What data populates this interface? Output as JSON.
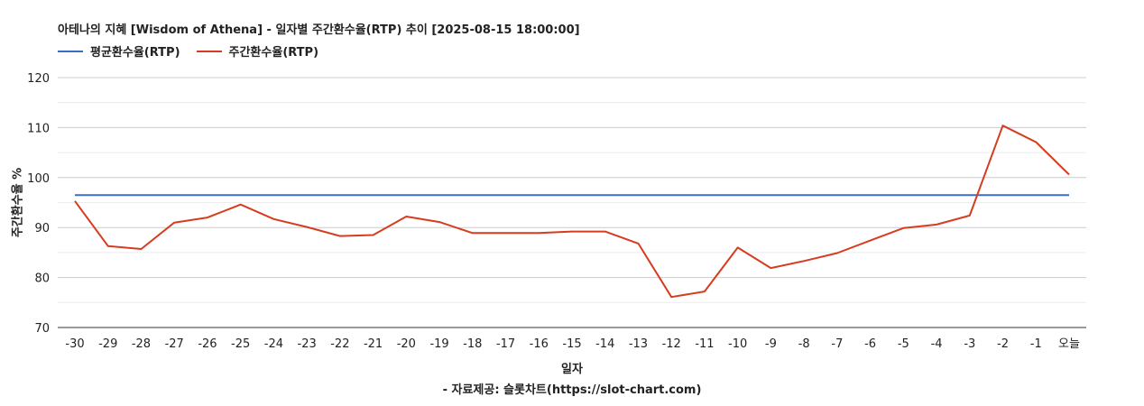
{
  "chart_data": {
    "type": "line",
    "title": "아테나의 지혜 [Wisdom of Athena] - 일자별 주간환수율(RTP) 추이 [2025-08-15 18:00:00]",
    "xlabel": "일자",
    "ylabel": "주간환수율 %",
    "source": "- 자료제공: 슬롯차트(https://slot-chart.com)",
    "categories": [
      "-30",
      "-29",
      "-28",
      "-27",
      "-26",
      "-25",
      "-24",
      "-23",
      "-22",
      "-21",
      "-20",
      "-19",
      "-18",
      "-17",
      "-16",
      "-15",
      "-14",
      "-13",
      "-12",
      "-11",
      "-10",
      "-9",
      "-8",
      "-7",
      "-6",
      "-5",
      "-4",
      "-3",
      "-2",
      "-1",
      "오늘"
    ],
    "yticks": [
      70,
      80,
      90,
      100,
      110,
      120
    ],
    "ylim": [
      70,
      120
    ],
    "grid": true,
    "legend_position": "top-left",
    "series": [
      {
        "name": "평균환수율(RTP)",
        "color": "#3a6cc8",
        "values": [
          96.5,
          96.5,
          96.5,
          96.5,
          96.5,
          96.5,
          96.5,
          96.5,
          96.5,
          96.5,
          96.5,
          96.5,
          96.5,
          96.5,
          96.5,
          96.5,
          96.5,
          96.5,
          96.5,
          96.5,
          96.5,
          96.5,
          96.5,
          96.5,
          96.5,
          96.5,
          96.5,
          96.5,
          96.5,
          96.5,
          96.5
        ]
      },
      {
        "name": "주간환수율(RTP)",
        "color": "#d63c1e",
        "values": [
          95.3,
          86.3,
          85.7,
          91.0,
          92.0,
          94.6,
          91.7,
          90.1,
          88.3,
          88.5,
          92.2,
          91.1,
          88.9,
          88.9,
          88.9,
          89.2,
          89.2,
          86.8,
          76.1,
          77.2,
          86.0,
          81.9,
          83.3,
          84.9,
          87.4,
          89.9,
          90.6,
          92.4,
          110.4,
          107.1,
          100.6
        ]
      }
    ]
  }
}
